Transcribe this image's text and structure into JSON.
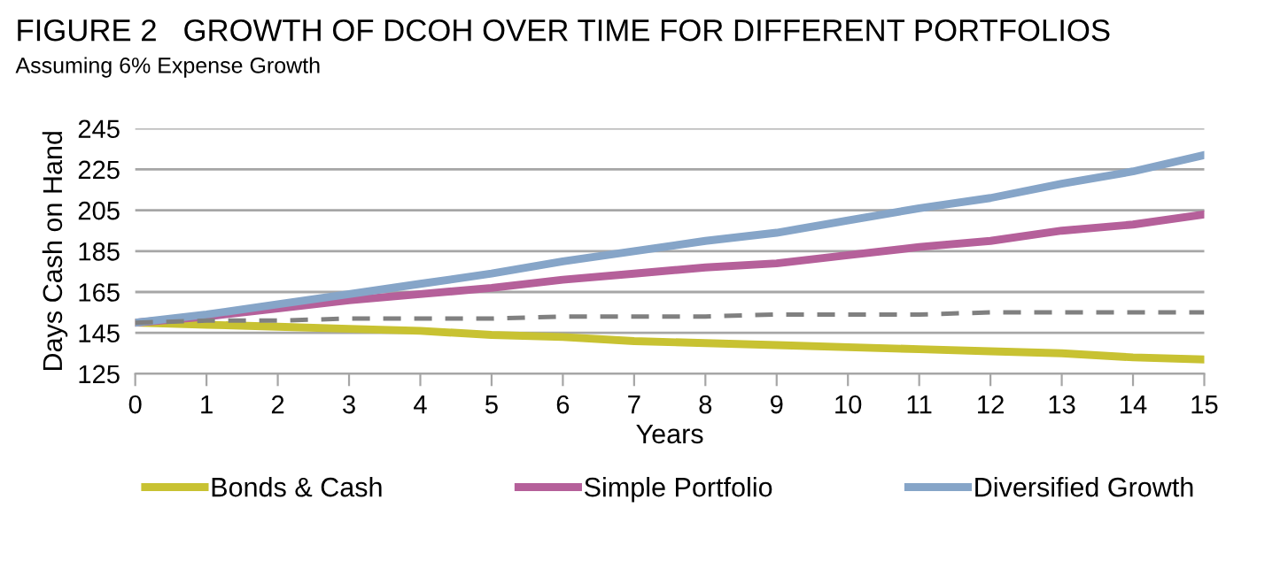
{
  "chart_data": {
    "type": "line",
    "title": "FIGURE 2   GROWTH OF DCOH OVER TIME FOR DIFFERENT PORTFOLIOS",
    "subtitle": "Assuming 6% Expense Growth",
    "xlabel": "Years",
    "ylabel": "Days Cash on Hand",
    "x": [
      0,
      1,
      2,
      3,
      4,
      5,
      6,
      7,
      8,
      9,
      10,
      11,
      12,
      13,
      14,
      15
    ],
    "series": [
      {
        "name": "Bonds & Cash",
        "color": "#c8c232",
        "values": [
          150,
          149,
          148,
          147,
          146,
          144,
          143,
          141,
          140,
          139,
          138,
          137,
          136,
          135,
          133,
          132
        ]
      },
      {
        "name": "Simple Portfolio",
        "color": "#b5609a",
        "values": [
          150,
          153,
          157,
          161,
          164,
          167,
          171,
          174,
          177,
          179,
          183,
          187,
          190,
          195,
          198,
          203
        ]
      },
      {
        "name": "Diversified Growth",
        "color": "#86a5c8",
        "values": [
          150,
          154,
          159,
          164,
          169,
          174,
          180,
          185,
          190,
          194,
          200,
          206,
          211,
          218,
          224,
          232
        ]
      },
      {
        "color": "#808080",
        "line_style": "dashed",
        "values": [
          150,
          151,
          151,
          152,
          152,
          152,
          153,
          153,
          153,
          154,
          154,
          154,
          155,
          155,
          155,
          155
        ]
      }
    ],
    "xlim": [
      0,
      15
    ],
    "xticks": [
      0,
      1,
      2,
      3,
      4,
      5,
      6,
      7,
      8,
      9,
      10,
      11,
      12,
      13,
      14,
      15
    ],
    "ylim": [
      125,
      245
    ],
    "yticks": [
      125,
      145,
      165,
      185,
      205,
      225,
      245
    ],
    "grid": "y",
    "legend": "bottom",
    "marker": "none"
  }
}
